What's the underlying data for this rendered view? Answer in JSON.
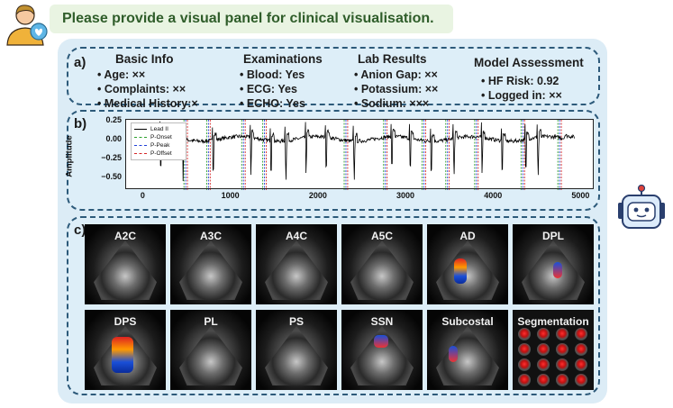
{
  "prompt": {
    "text": "Please provide a visual panel for clinical visualisation."
  },
  "panels": {
    "a_label": "a)",
    "b_label": "b)",
    "c_label": "c)"
  },
  "info": {
    "basic": {
      "title": "Basic Info",
      "items": [
        "• Age: ××",
        "• Complaints: ××",
        "• Medical History:×"
      ]
    },
    "exams": {
      "title": "Examinations",
      "items": [
        "• Blood: Yes",
        "• ECG: Yes",
        "• ECHO: Yes"
      ]
    },
    "lab": {
      "title": "Lab Results",
      "items": [
        "• Anion Gap: ××",
        "• Potassium: ××",
        "• Sodium: ×××"
      ]
    },
    "model": {
      "title": "Model Assessment",
      "items": [
        "• HF Risk: 0.92",
        "• Logged in: ××"
      ]
    }
  },
  "chart_data": {
    "type": "line",
    "ylabel": "Amplitude",
    "xlim": [
      -200,
      5150
    ],
    "ylim": [
      -0.65,
      0.27
    ],
    "x_ticks": [
      0,
      1000,
      2000,
      3000,
      4000,
      5000
    ],
    "y_ticks": [
      0.25,
      0.0,
      -0.25,
      -0.5
    ],
    "y_tick_labels": [
      "0.25",
      "0.00",
      "−0.25",
      "−0.50"
    ],
    "grid": false,
    "legend_position": "top-left",
    "series": [
      {
        "name": "Lead II",
        "color": "#000000",
        "style": "solid"
      },
      {
        "name": "P-Onset",
        "color": "#2ca02c",
        "style": "dashed"
      },
      {
        "name": "P-Peak",
        "color": "#1f3fd8",
        "style": "dashed"
      },
      {
        "name": "P-Offset",
        "color": "#d62728",
        "style": "dashed"
      }
    ],
    "beats_x": [
      190,
      445,
      790,
      1220,
      1450,
      1620,
      1850,
      2080,
      2400,
      2830,
      3040,
      3280,
      3540,
      3860,
      4090,
      4360,
      4500
    ],
    "p_onset": [
      460,
      720,
      1120,
      1360,
      2290,
      2740,
      3180,
      3450,
      3780,
      4310,
      4730
    ],
    "p_peak": [
      480,
      740,
      1140,
      1380,
      2310,
      2760,
      3200,
      3470,
      3800,
      4330,
      4750
    ],
    "p_offset": [
      500,
      760,
      1160,
      1400,
      2330,
      2780,
      3220,
      3490,
      3820,
      4350,
      4770
    ]
  },
  "echo": {
    "views": [
      "A2C",
      "A3C",
      "A4C",
      "A5C",
      "AD",
      "DPL",
      "DPS",
      "PL",
      "PS",
      "SSN",
      "Subcostal",
      "Segmentation"
    ]
  }
}
